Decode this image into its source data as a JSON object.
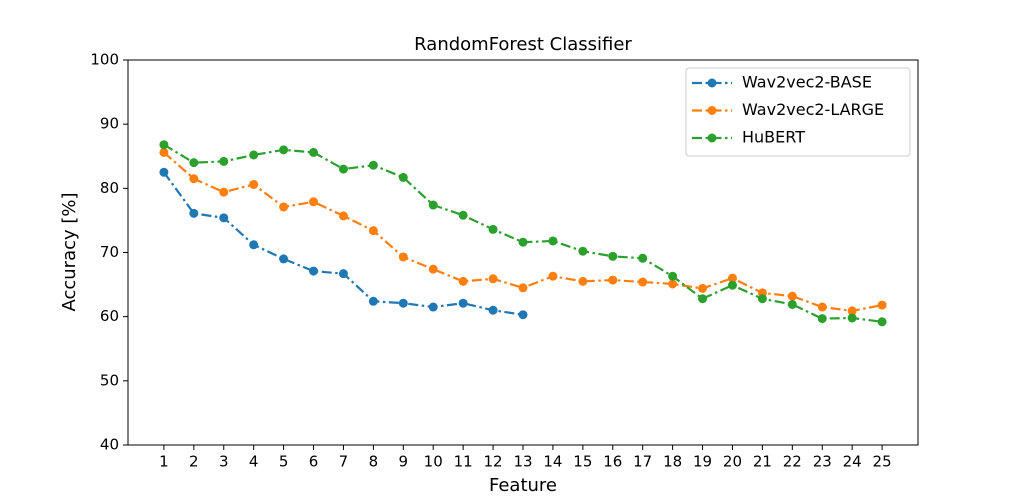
{
  "chart_data": {
    "type": "line",
    "title": "RandomForest Classifier",
    "x_label": "Feature",
    "y_label": "Accuracy [%]",
    "x": [
      1,
      2,
      3,
      4,
      5,
      6,
      7,
      8,
      9,
      10,
      11,
      12,
      13,
      14,
      15,
      16,
      17,
      18,
      19,
      20,
      21,
      22,
      23,
      24,
      25
    ],
    "series": [
      {
        "name": "Wav2vec2-BASE",
        "color": "#1f77b4",
        "values": [
          82.5,
          76.1,
          75.4,
          71.2,
          69.0,
          67.1,
          66.7,
          62.4,
          62.1,
          61.5,
          62.1,
          61.0,
          60.3,
          null,
          null,
          null,
          null,
          null,
          null,
          null,
          null,
          null,
          null,
          null,
          null
        ]
      },
      {
        "name": "Wav2vec2-LARGE",
        "color": "#ff7f0e",
        "values": [
          85.6,
          81.5,
          79.4,
          80.6,
          77.1,
          77.9,
          75.7,
          73.4,
          69.3,
          67.4,
          65.5,
          65.9,
          64.5,
          66.3,
          65.5,
          65.7,
          65.4,
          65.1,
          64.4,
          66.0,
          63.7,
          63.2,
          61.5,
          60.9,
          61.8
        ]
      },
      {
        "name": "HuBERT",
        "color": "#2ca02c",
        "values": [
          86.8,
          84.0,
          84.2,
          85.2,
          86.0,
          85.6,
          83.0,
          83.6,
          81.7,
          77.4,
          75.8,
          73.6,
          71.6,
          71.8,
          70.2,
          69.4,
          69.1,
          66.3,
          62.8,
          64.9,
          62.8,
          61.9,
          59.7,
          59.8,
          59.2
        ]
      }
    ],
    "xlim": [
      -0.2,
      26.2
    ],
    "xticks": [
      1,
      2,
      3,
      4,
      5,
      6,
      7,
      8,
      9,
      10,
      11,
      12,
      13,
      14,
      15,
      16,
      17,
      18,
      19,
      20,
      21,
      22,
      23,
      24,
      25
    ],
    "ylim": [
      40,
      100
    ],
    "yticks": [
      40,
      50,
      60,
      70,
      80,
      90,
      100
    ],
    "grid": false,
    "legend_loc": "upper right"
  }
}
